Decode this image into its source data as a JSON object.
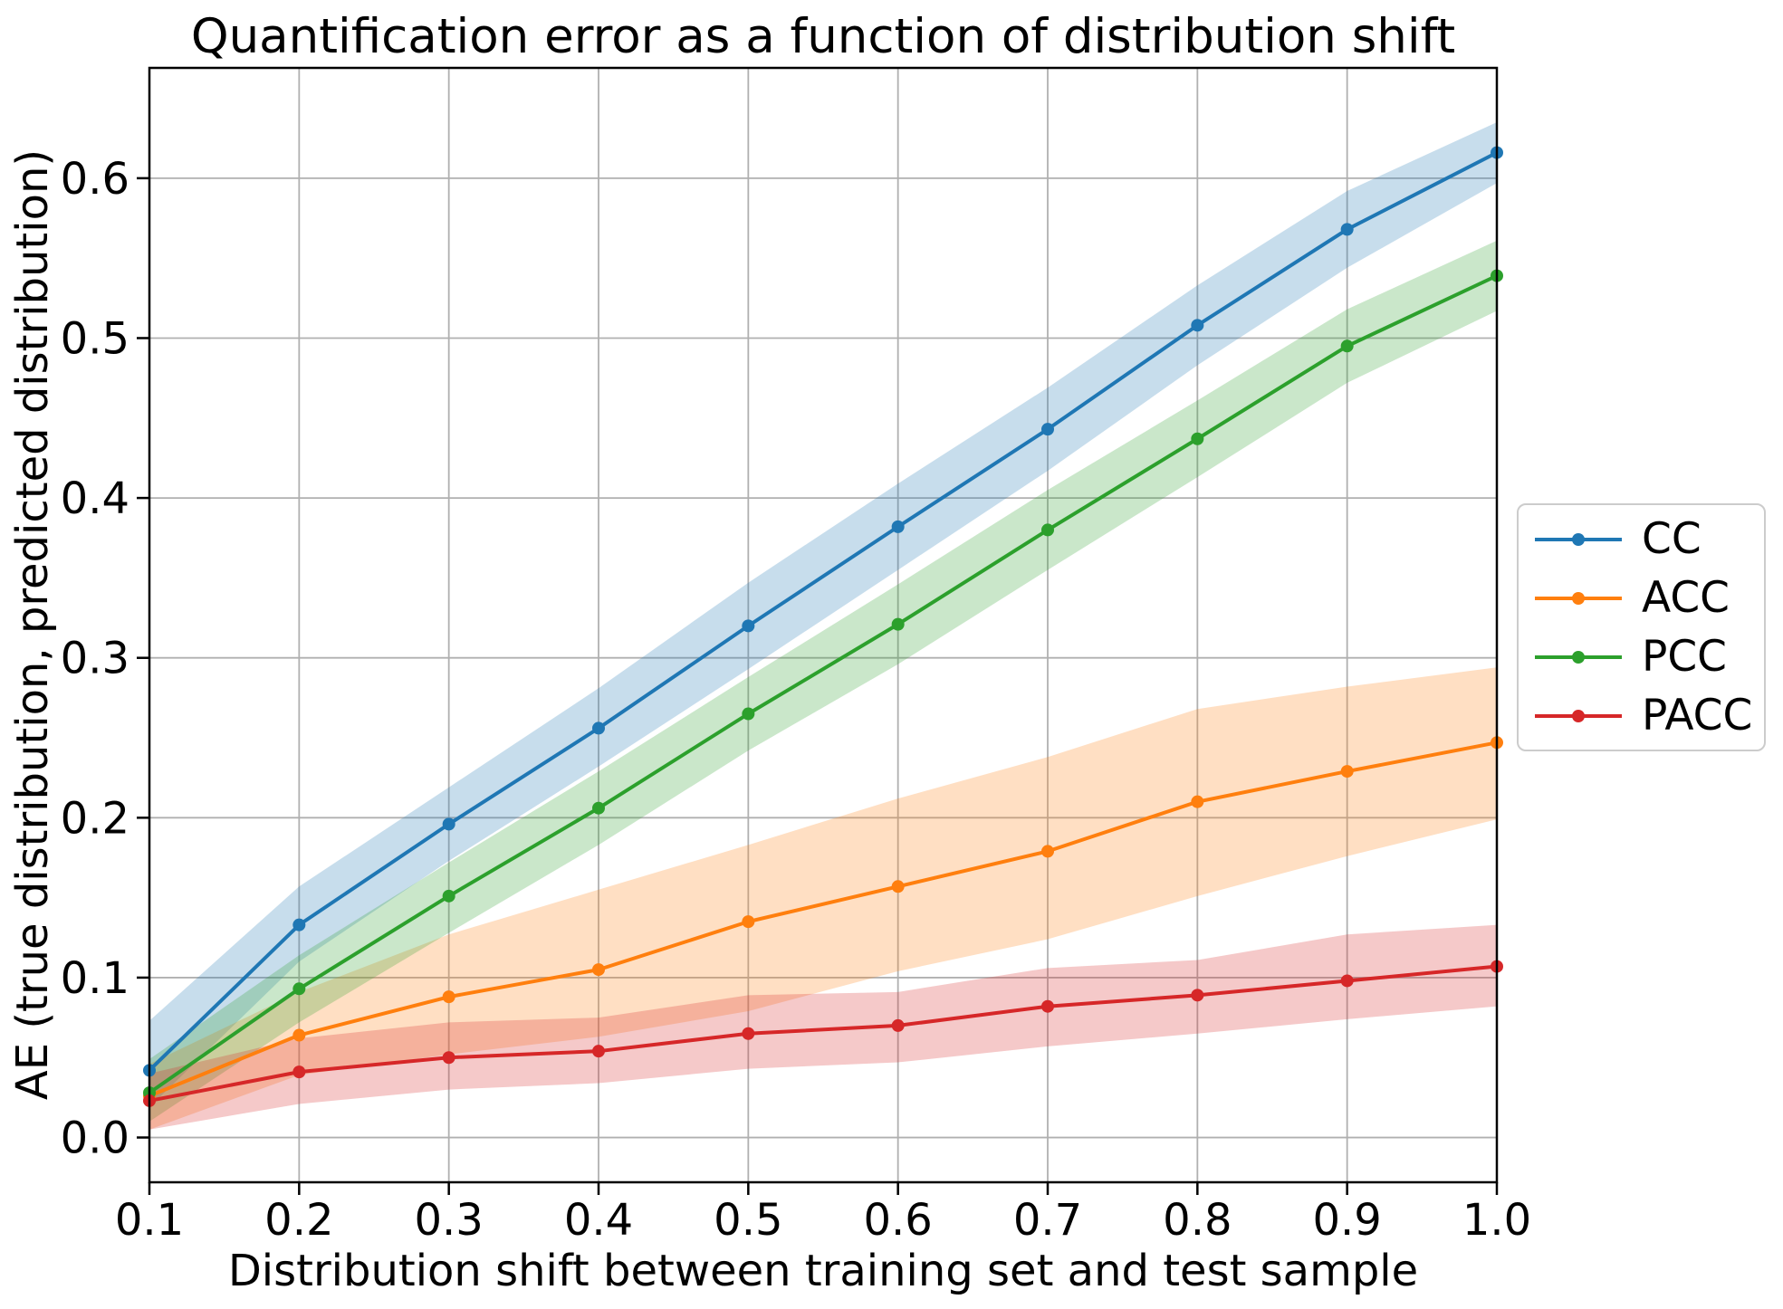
{
  "figure": {
    "background": "#ffffff",
    "grid_color": "#b0b0b0",
    "spine_color": "#000000",
    "text_color": "#000000"
  },
  "chart_data": {
    "type": "line",
    "title": "Quantification error as a function of distribution shift",
    "xlabel": "Distribution shift between training set and test sample",
    "ylabel": "AE (true distribution, predicted distribution)",
    "grid": true,
    "legend_position": "right outside, center",
    "band_alpha": 0.25,
    "xlim": [
      0.1,
      1.0
    ],
    "ylim": [
      -0.028,
      0.669
    ],
    "xticks": [
      0.1,
      0.2,
      0.3,
      0.4,
      0.5,
      0.6,
      0.7,
      0.8,
      0.9,
      1.0
    ],
    "yticks": [
      0.0,
      0.1,
      0.2,
      0.3,
      0.4,
      0.5,
      0.6
    ],
    "x": [
      0.1,
      0.2,
      0.3,
      0.4,
      0.5,
      0.6,
      0.7,
      0.8,
      0.9,
      1.0
    ],
    "series": [
      {
        "name": "CC",
        "color": "#1f77b4",
        "values": [
          0.042,
          0.133,
          0.196,
          0.256,
          0.32,
          0.382,
          0.443,
          0.508,
          0.568,
          0.616
        ],
        "band_upper": [
          0.073,
          0.157,
          0.219,
          0.281,
          0.347,
          0.409,
          0.469,
          0.533,
          0.592,
          0.635
        ],
        "band_lower": [
          0.019,
          0.11,
          0.173,
          0.232,
          0.293,
          0.355,
          0.417,
          0.483,
          0.544,
          0.597
        ]
      },
      {
        "name": "ACC",
        "color": "#ff7f0e",
        "values": [
          0.026,
          0.064,
          0.088,
          0.105,
          0.135,
          0.157,
          0.179,
          0.21,
          0.229,
          0.247
        ],
        "band_upper": [
          0.046,
          0.091,
          0.127,
          0.155,
          0.183,
          0.212,
          0.238,
          0.268,
          0.282,
          0.294
        ],
        "band_lower": [
          0.005,
          0.039,
          0.052,
          0.063,
          0.079,
          0.104,
          0.124,
          0.151,
          0.176,
          0.199
        ]
      },
      {
        "name": "PCC",
        "color": "#2ca02c",
        "values": [
          0.028,
          0.093,
          0.151,
          0.206,
          0.265,
          0.321,
          0.38,
          0.437,
          0.495,
          0.539
        ],
        "band_upper": [
          0.049,
          0.114,
          0.172,
          0.229,
          0.288,
          0.346,
          0.405,
          0.461,
          0.518,
          0.561
        ],
        "band_lower": [
          0.01,
          0.072,
          0.128,
          0.183,
          0.242,
          0.296,
          0.355,
          0.413,
          0.472,
          0.517
        ]
      },
      {
        "name": "PACC",
        "color": "#d62728",
        "values": [
          0.023,
          0.041,
          0.05,
          0.054,
          0.065,
          0.07,
          0.082,
          0.089,
          0.098,
          0.107
        ],
        "band_upper": [
          0.04,
          0.062,
          0.072,
          0.075,
          0.089,
          0.091,
          0.106,
          0.111,
          0.127,
          0.133
        ],
        "band_lower": [
          0.005,
          0.021,
          0.03,
          0.034,
          0.043,
          0.047,
          0.057,
          0.065,
          0.074,
          0.082
        ]
      }
    ]
  }
}
